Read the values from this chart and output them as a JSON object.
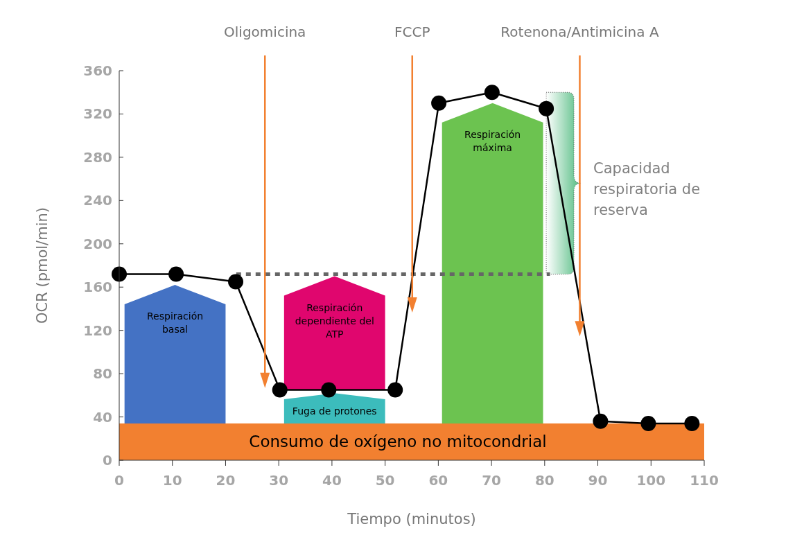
{
  "chart_data": {
    "type": "line",
    "xlabel": "Tiempo (minutos)",
    "ylabel": "OCR (pmol/min)",
    "xlim": [
      0,
      110
    ],
    "xticks": [
      0,
      10,
      20,
      30,
      40,
      50,
      60,
      70,
      80,
      90,
      100,
      110
    ],
    "ylim": [
      0,
      360
    ],
    "yticks": [
      0,
      40,
      80,
      120,
      160,
      200,
      240,
      280,
      320,
      360
    ],
    "marker": "circle",
    "bands": [
      {
        "axis": "y",
        "from": 0,
        "to": 34,
        "label": "Consumo de oxígeno no mitocondrial",
        "color": "#f28030"
      }
    ],
    "ref_lines": [
      {
        "axis": "x",
        "value": 27.4,
        "label": "Oligomicina",
        "color": "#f28030"
      },
      {
        "axis": "x",
        "value": 55.1,
        "label": "FCCP",
        "color": "#f28030"
      },
      {
        "axis": "x",
        "value": 86.6,
        "label": "Rotenona/Antimicina A",
        "color": "#f28030"
      }
    ],
    "series": [
      {
        "type": "bar",
        "name": "Respiración basal",
        "color": "#4472c4",
        "x": [
          10.5
        ],
        "base": [
          34
        ],
        "values": [
          128
        ]
      },
      {
        "type": "bar",
        "name": "Respiración dependiente del ATP",
        "color": "#e0066e",
        "x": [
          40.5
        ],
        "base": [
          65
        ],
        "values": [
          105
        ]
      },
      {
        "type": "bar",
        "name": "Fuga de protones",
        "color": "#3cbcbc",
        "x": [
          40.5
        ],
        "base": [
          34
        ],
        "values": [
          28
        ]
      },
      {
        "type": "bar",
        "name": "Respiración máxima",
        "color": "#6cc350",
        "x": [
          70.2
        ],
        "base": [
          34
        ],
        "values": [
          296
        ]
      },
      {
        "color": "#666666",
        "line_style": "dotted",
        "marker": "none",
        "x": [
          22,
          81
        ],
        "values": [
          172,
          172
        ]
      },
      {
        "color": "#000000",
        "x": [
          0,
          10.7,
          21.9,
          30.2,
          39.4,
          51.9,
          60.1,
          70.1,
          80.3,
          90.5,
          99.5,
          107.7
        ],
        "values": [
          172,
          172,
          165,
          65,
          65,
          65,
          330,
          340,
          325,
          36,
          34,
          34
        ]
      }
    ],
    "annotations": [
      "Capacidad respiratoria de reserva"
    ]
  }
}
